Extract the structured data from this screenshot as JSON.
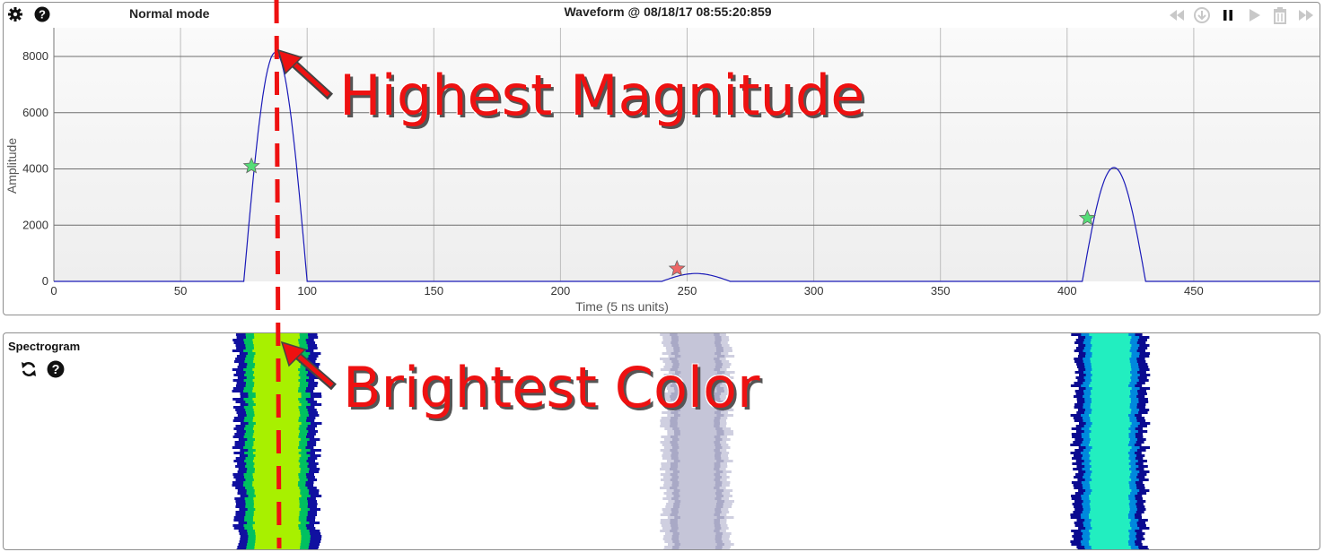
{
  "waveform_panel": {
    "mode_label": "Normal mode",
    "title": "Waveform @ 08/18/17 08:55:20:859",
    "icons": [
      "gear-icon",
      "help-icon"
    ],
    "controls": [
      "rewind-icon",
      "download-icon",
      "pause-icon",
      "play-icon",
      "trash-icon",
      "fast-forward-icon"
    ]
  },
  "chart_data": {
    "type": "line",
    "xlabel": "Time (5 ns units)",
    "ylabel": "Amplitude",
    "xlim": [
      0,
      500
    ],
    "ylim": [
      0,
      8000
    ],
    "x_ticks": [
      0,
      50,
      100,
      150,
      200,
      250,
      300,
      350,
      400,
      450
    ],
    "y_ticks": [
      0,
      2000,
      4000,
      6000,
      8000
    ],
    "grid": true,
    "series": [
      {
        "color": "#1a1ab8",
        "pulses": [
          {
            "start": 75,
            "end": 100,
            "peak_x": 88,
            "peak_y": 8150
          },
          {
            "start": 240,
            "end": 267,
            "peak_x": 254,
            "peak_y": 280
          },
          {
            "start": 406,
            "end": 431,
            "peak_x": 417,
            "peak_y": 4050
          }
        ]
      }
    ],
    "markers": [
      {
        "x": 78,
        "y": 4100,
        "color": "#55dd77",
        "shape": "star"
      },
      {
        "x": 246,
        "y": 450,
        "color": "#ee6666",
        "shape": "star"
      },
      {
        "x": 408,
        "y": 2250,
        "color": "#55dd77",
        "shape": "star"
      }
    ],
    "vertical_marker_x": 88
  },
  "spectrogram_panel": {
    "title": "Spectrogram",
    "icons": [
      "refresh-icon",
      "help-icon"
    ],
    "bands": [
      {
        "center_x": 88,
        "half_width": 15,
        "core": "#a8f000",
        "edge": "#00c060",
        "fringe": "#1010a0"
      },
      {
        "center_x": 254,
        "half_width": 12,
        "core": "#c5c5d8",
        "edge": "#a9a9c6",
        "fringe": "#cfcfe0"
      },
      {
        "center_x": 417,
        "half_width": 13,
        "core": "#22eec0",
        "edge": "#0088dd",
        "fringe": "#0a0a90"
      }
    ]
  },
  "annotations": {
    "magnitude": "Highest Magnitude",
    "color": "Brightest Color",
    "colors": {
      "text": "#ee1111",
      "guide_line": "#ee1111"
    }
  }
}
